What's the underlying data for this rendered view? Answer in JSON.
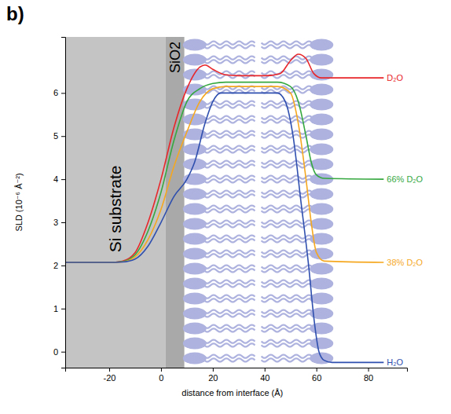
{
  "chart_data": {
    "type": "line",
    "panel_label": "b)",
    "x_label": "distance from interface (Å)",
    "y_label": "SLD (10⁻⁶ Å⁻²)",
    "xlim": [
      -37,
      95
    ],
    "ylim": [
      -0.37,
      7.3
    ],
    "xticks": [
      -20,
      0,
      20,
      40,
      60,
      80
    ],
    "yticks": [
      0,
      1,
      2,
      3,
      4,
      5,
      6
    ],
    "grid": false,
    "annotations": [
      {
        "text": "Si substrate",
        "x0": -37,
        "x1": 1.8,
        "color": "#c4c4c4"
      },
      {
        "text": "SiO2",
        "x0": 1.8,
        "x1": 9,
        "color": "#a9a9a9"
      }
    ],
    "series": [
      {
        "name": "D₂O",
        "color": "#e8262a",
        "x": [
          -37,
          -20,
          -15,
          -10,
          -5,
          0,
          5,
          10,
          15,
          17,
          20,
          25,
          30,
          40,
          46,
          50,
          53,
          56,
          59,
          62,
          86
        ],
        "values": [
          2.07,
          2.07,
          2.1,
          2.3,
          3.0,
          4.0,
          5.2,
          6.1,
          6.6,
          6.65,
          6.55,
          6.42,
          6.4,
          6.4,
          6.45,
          6.75,
          6.9,
          6.8,
          6.45,
          6.35,
          6.35
        ]
      },
      {
        "name": "66% D₂O",
        "color": "#35a83f",
        "x": [
          -37,
          -20,
          -15,
          -10,
          -5,
          0,
          5,
          10,
          15,
          20,
          25,
          45,
          50,
          53,
          56,
          58,
          60,
          63,
          86
        ],
        "values": [
          2.07,
          2.07,
          2.09,
          2.25,
          2.8,
          3.7,
          4.9,
          5.8,
          6.1,
          6.22,
          6.25,
          6.25,
          6.15,
          5.8,
          5.0,
          4.4,
          4.1,
          4.02,
          4.0
        ]
      },
      {
        "name": "38% D₂O",
        "color": "#f5a81f",
        "x": [
          -37,
          -20,
          -15,
          -10,
          -5,
          0,
          5,
          10,
          15,
          20,
          25,
          45,
          50,
          53,
          56,
          58,
          60,
          63,
          86
        ],
        "values": [
          2.07,
          2.07,
          2.08,
          2.2,
          2.6,
          3.3,
          4.3,
          5.1,
          5.8,
          6.1,
          6.15,
          6.15,
          6.0,
          5.3,
          4.0,
          3.0,
          2.3,
          2.1,
          2.07
        ]
      },
      {
        "name": "H₂O",
        "color": "#2f4fae",
        "x": [
          -37,
          -20,
          -15,
          -10,
          -5,
          0,
          5,
          10,
          13,
          17,
          20,
          23,
          45,
          48,
          51,
          54,
          57,
          59,
          61,
          63,
          66,
          86
        ],
        "values": [
          2.07,
          2.07,
          2.08,
          2.15,
          2.45,
          3.0,
          3.6,
          4.0,
          4.4,
          5.3,
          5.8,
          6.0,
          6.0,
          5.8,
          5.0,
          3.5,
          2.0,
          0.8,
          0.0,
          -0.2,
          -0.25,
          -0.25
        ]
      }
    ]
  }
}
